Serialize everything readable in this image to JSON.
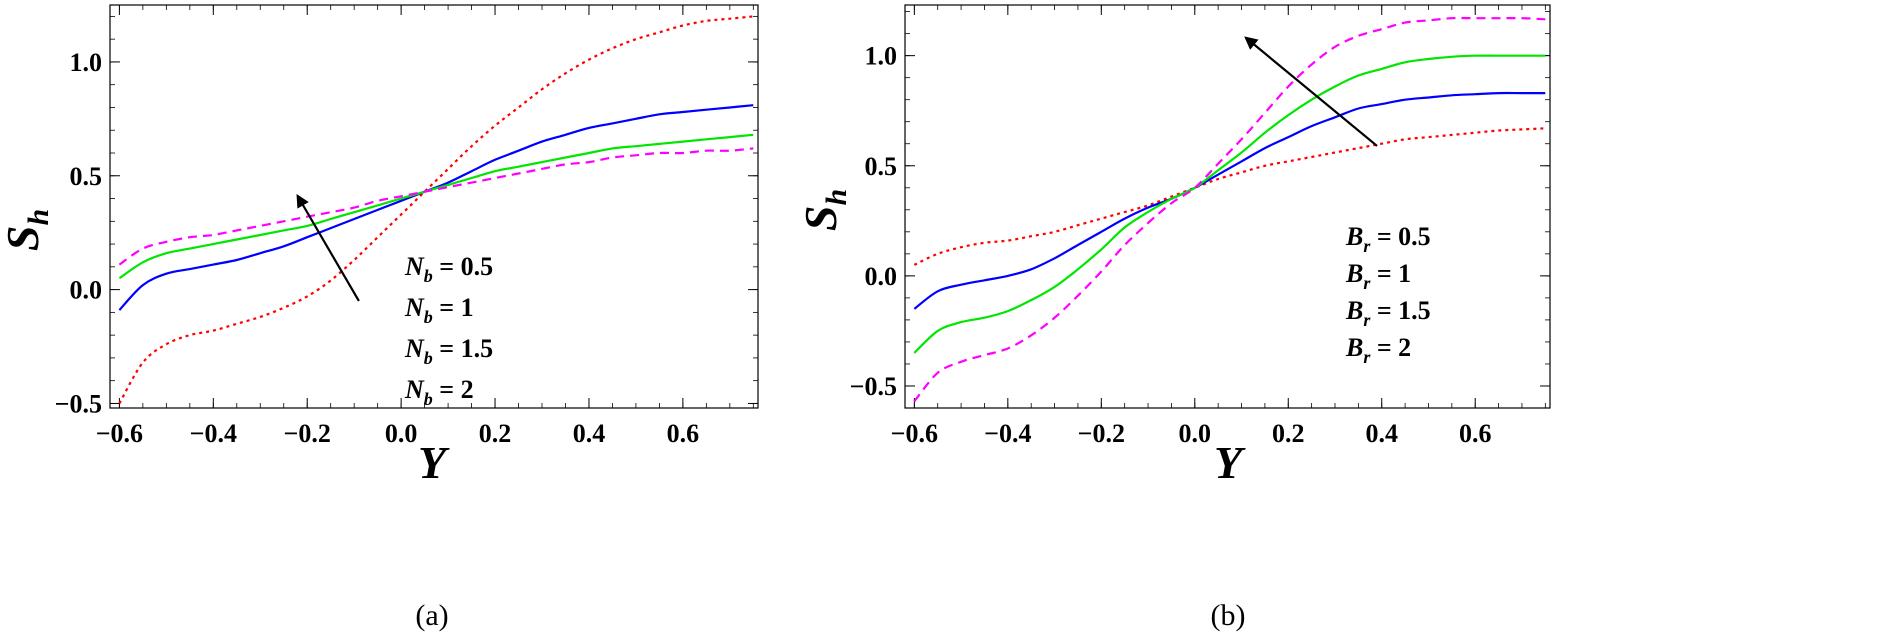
{
  "colors": {
    "red": "#ff0000",
    "blue": "#0000ff",
    "green": "#00e600",
    "magenta": "#ff00ff",
    "axis": "#000000"
  },
  "chart_data": [
    {
      "type": "line",
      "caption": "(a)",
      "xlabel": "Y",
      "ylabel": "S",
      "ylabel_sub": "h",
      "xlim": [
        -0.62,
        0.76
      ],
      "ylim": [
        -0.52,
        1.25
      ],
      "xticks": [
        -0.6,
        -0.4,
        -0.2,
        0.0,
        0.2,
        0.4,
        0.6
      ],
      "xtick_labels": [
        "−0.6",
        "−0.4",
        "−0.2",
        "0.0",
        "0.2",
        "0.4",
        "0.6"
      ],
      "yticks": [
        -0.5,
        0.0,
        0.5,
        1.0
      ],
      "ytick_labels": [
        "−0.5",
        "0.0",
        "0.5",
        "1.0"
      ],
      "legend": [
        {
          "symbol": "N",
          "sub": "b",
          "value": "= 0.5"
        },
        {
          "symbol": "N",
          "sub": "b",
          "value": "= 1"
        },
        {
          "symbol": "N",
          "sub": "b",
          "value": "= 1.5"
        },
        {
          "symbol": "N",
          "sub": "b",
          "value": "= 2"
        }
      ],
      "arrow": {
        "from": [
          -0.09,
          -0.05
        ],
        "to": [
          -0.22,
          0.41
        ]
      },
      "x": [
        -0.6,
        -0.55,
        -0.5,
        -0.45,
        -0.4,
        -0.35,
        -0.3,
        -0.25,
        -0.2,
        -0.15,
        -0.1,
        -0.05,
        0.0,
        0.05,
        0.1,
        0.15,
        0.2,
        0.25,
        0.3,
        0.35,
        0.4,
        0.45,
        0.5,
        0.55,
        0.6,
        0.65,
        0.7,
        0.75
      ],
      "series": [
        {
          "name": "N_b = 0.5",
          "color": "red",
          "dash": "dotted",
          "values": [
            -0.5,
            -0.32,
            -0.24,
            -0.2,
            -0.18,
            -0.15,
            -0.12,
            -0.08,
            -0.03,
            0.04,
            0.13,
            0.23,
            0.33,
            0.43,
            0.53,
            0.63,
            0.72,
            0.8,
            0.88,
            0.95,
            1.01,
            1.06,
            1.1,
            1.13,
            1.16,
            1.18,
            1.19,
            1.2
          ]
        },
        {
          "name": "N_b = 1",
          "color": "blue",
          "dash": "solid",
          "values": [
            -0.09,
            0.02,
            0.07,
            0.09,
            0.11,
            0.13,
            0.16,
            0.19,
            0.23,
            0.27,
            0.31,
            0.35,
            0.39,
            0.43,
            0.47,
            0.52,
            0.57,
            0.61,
            0.65,
            0.68,
            0.71,
            0.73,
            0.75,
            0.77,
            0.78,
            0.79,
            0.8,
            0.81
          ]
        },
        {
          "name": "N_b = 1.5",
          "color": "green",
          "dash": "solid",
          "values": [
            0.05,
            0.12,
            0.16,
            0.18,
            0.2,
            0.22,
            0.24,
            0.26,
            0.28,
            0.31,
            0.34,
            0.37,
            0.4,
            0.43,
            0.46,
            0.49,
            0.52,
            0.54,
            0.56,
            0.58,
            0.6,
            0.62,
            0.63,
            0.64,
            0.65,
            0.66,
            0.67,
            0.68
          ]
        },
        {
          "name": "N_b = 2",
          "color": "magenta",
          "dash": "dashed",
          "values": [
            0.11,
            0.18,
            0.21,
            0.23,
            0.24,
            0.26,
            0.28,
            0.3,
            0.32,
            0.34,
            0.36,
            0.39,
            0.41,
            0.43,
            0.45,
            0.47,
            0.49,
            0.51,
            0.53,
            0.55,
            0.56,
            0.58,
            0.59,
            0.6,
            0.6,
            0.61,
            0.61,
            0.62
          ]
        }
      ]
    },
    {
      "type": "line",
      "caption": "(b)",
      "xlabel": "Y",
      "ylabel": "S",
      "ylabel_sub": "h",
      "xlim": [
        -0.62,
        0.76
      ],
      "ylim": [
        -0.6,
        1.23
      ],
      "xticks": [
        -0.6,
        -0.4,
        -0.2,
        0.0,
        0.2,
        0.4,
        0.6
      ],
      "xtick_labels": [
        "−0.6",
        "−0.4",
        "−0.2",
        "0.0",
        "0.2",
        "0.4",
        "0.6"
      ],
      "yticks": [
        -0.5,
        0.0,
        0.5,
        1.0
      ],
      "ytick_labels": [
        "−0.5",
        "0.0",
        "0.5",
        "1.0"
      ],
      "legend": [
        {
          "symbol": "B",
          "sub": "r",
          "value": "= 0.5"
        },
        {
          "symbol": "B",
          "sub": "r",
          "value": "= 1"
        },
        {
          "symbol": "B",
          "sub": "r",
          "value": "= 1.5"
        },
        {
          "symbol": "B",
          "sub": "r",
          "value": "= 2"
        }
      ],
      "arrow": {
        "from": [
          0.39,
          0.59
        ],
        "to": [
          0.11,
          1.08
        ]
      },
      "x": [
        -0.6,
        -0.55,
        -0.5,
        -0.45,
        -0.4,
        -0.35,
        -0.3,
        -0.25,
        -0.2,
        -0.15,
        -0.1,
        -0.05,
        0.0,
        0.05,
        0.1,
        0.15,
        0.2,
        0.25,
        0.3,
        0.35,
        0.4,
        0.45,
        0.5,
        0.55,
        0.6,
        0.65,
        0.7,
        0.75
      ],
      "series": [
        {
          "name": "B_r = 0.5",
          "color": "red",
          "dash": "dotted",
          "values": [
            0.05,
            0.1,
            0.13,
            0.15,
            0.16,
            0.18,
            0.2,
            0.23,
            0.26,
            0.29,
            0.32,
            0.36,
            0.4,
            0.44,
            0.47,
            0.5,
            0.52,
            0.54,
            0.56,
            0.58,
            0.6,
            0.62,
            0.63,
            0.64,
            0.65,
            0.66,
            0.665,
            0.67
          ]
        },
        {
          "name": "B_r = 1",
          "color": "blue",
          "dash": "solid",
          "values": [
            -0.15,
            -0.07,
            -0.04,
            -0.02,
            0.0,
            0.03,
            0.08,
            0.14,
            0.2,
            0.26,
            0.31,
            0.35,
            0.4,
            0.46,
            0.52,
            0.58,
            0.63,
            0.68,
            0.72,
            0.76,
            0.78,
            0.8,
            0.81,
            0.82,
            0.825,
            0.83,
            0.83,
            0.83
          ]
        },
        {
          "name": "B_r = 1.5",
          "color": "green",
          "dash": "solid",
          "values": [
            -0.35,
            -0.25,
            -0.21,
            -0.19,
            -0.16,
            -0.11,
            -0.05,
            0.03,
            0.12,
            0.22,
            0.29,
            0.35,
            0.4,
            0.48,
            0.56,
            0.65,
            0.73,
            0.8,
            0.86,
            0.91,
            0.94,
            0.97,
            0.985,
            0.995,
            1.0,
            1.0,
            1.0,
            1.0
          ]
        },
        {
          "name": "B_r = 2",
          "color": "magenta",
          "dash": "dashed",
          "values": [
            -0.57,
            -0.44,
            -0.39,
            -0.36,
            -0.33,
            -0.27,
            -0.19,
            -0.09,
            0.02,
            0.14,
            0.24,
            0.33,
            0.4,
            0.51,
            0.62,
            0.74,
            0.86,
            0.96,
            1.04,
            1.09,
            1.12,
            1.15,
            1.16,
            1.17,
            1.17,
            1.17,
            1.17,
            1.165
          ]
        }
      ]
    }
  ]
}
